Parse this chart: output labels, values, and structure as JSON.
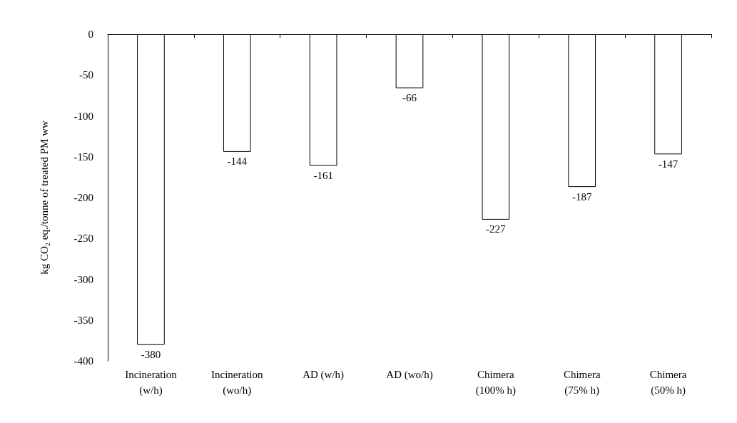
{
  "chart_data": {
    "type": "bar",
    "ylabel": "kg CO₂ eq./tonne of treated PM ww",
    "categories": [
      "Incineration\n(w/h)",
      "Incineration\n(wo/h)",
      "AD (w/h)",
      "AD (wo/h)",
      "Chimera\n(100% h)",
      "Chimera\n(75% h)",
      "Chimera\n(50% h)"
    ],
    "values": [
      -380,
      -144,
      -161,
      -66,
      -227,
      -187,
      -147
    ],
    "color": "#ffffff",
    "ylim": [
      -400,
      0
    ],
    "yticks": [
      -400,
      -350,
      -300,
      -250,
      -200,
      -150,
      -100,
      -50,
      0
    ],
    "data_labels": true,
    "grid": false
  }
}
